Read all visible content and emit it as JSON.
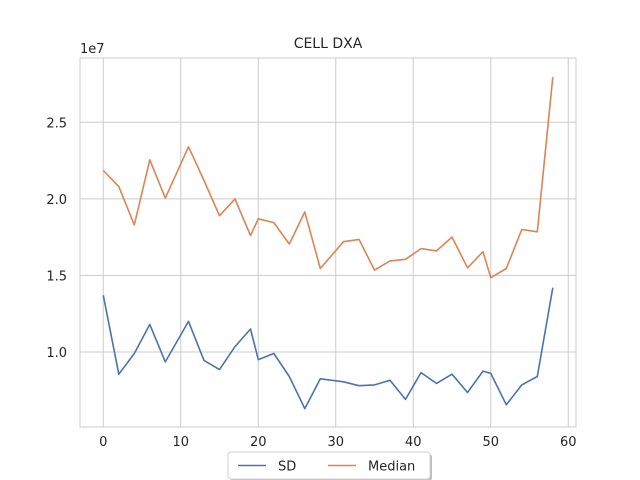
{
  "chart_data": {
    "type": "line",
    "title": "CELL DXA",
    "xlabel": "",
    "ylabel": "",
    "y_offset_label": "1e7",
    "xlim": [
      -3,
      61
    ],
    "ylim": [
      5100000,
      29200000
    ],
    "x_ticks": [
      0,
      10,
      20,
      30,
      40,
      50,
      60
    ],
    "x_tick_labels": [
      "0",
      "10",
      "20",
      "30",
      "40",
      "50",
      "60"
    ],
    "y_ticks": [
      10000000,
      15000000,
      20000000,
      25000000
    ],
    "y_tick_labels": [
      "1.0",
      "1.5",
      "2.0",
      "2.5"
    ],
    "grid": true,
    "legend_position": "bottom-center",
    "series": [
      {
        "name": "SD",
        "color": "#4c72b0",
        "x": [
          0,
          2,
          4,
          6,
          8,
          11,
          13,
          15,
          17,
          19,
          20,
          22,
          24,
          26,
          28,
          31,
          33,
          35,
          37,
          39,
          41,
          43,
          45,
          47,
          49,
          50,
          52,
          54,
          56,
          58
        ],
        "y": [
          13700000,
          8550000,
          9900000,
          11800000,
          9350000,
          12000000,
          9450000,
          8850000,
          10350000,
          11500000,
          9500000,
          9900000,
          8400000,
          6300000,
          8250000,
          8050000,
          7800000,
          7850000,
          8150000,
          6900000,
          8650000,
          7950000,
          8550000,
          7350000,
          8750000,
          8600000,
          6550000,
          7850000,
          8400000,
          14200000
        ]
      },
      {
        "name": "Median",
        "color": "#dd8452",
        "x": [
          0,
          2,
          4,
          6,
          8,
          11,
          13,
          15,
          17,
          19,
          20,
          22,
          24,
          26,
          28,
          31,
          33,
          35,
          37,
          39,
          41,
          43,
          45,
          47,
          49,
          50,
          52,
          54,
          56,
          58
        ],
        "y": [
          21850000,
          20800000,
          18300000,
          22550000,
          20050000,
          23400000,
          21200000,
          18900000,
          20000000,
          17600000,
          18700000,
          18450000,
          17050000,
          19150000,
          15450000,
          17200000,
          17350000,
          15350000,
          15950000,
          16050000,
          16750000,
          16600000,
          17500000,
          15500000,
          16550000,
          14850000,
          15450000,
          18000000,
          17850000,
          27950000
        ]
      }
    ]
  }
}
